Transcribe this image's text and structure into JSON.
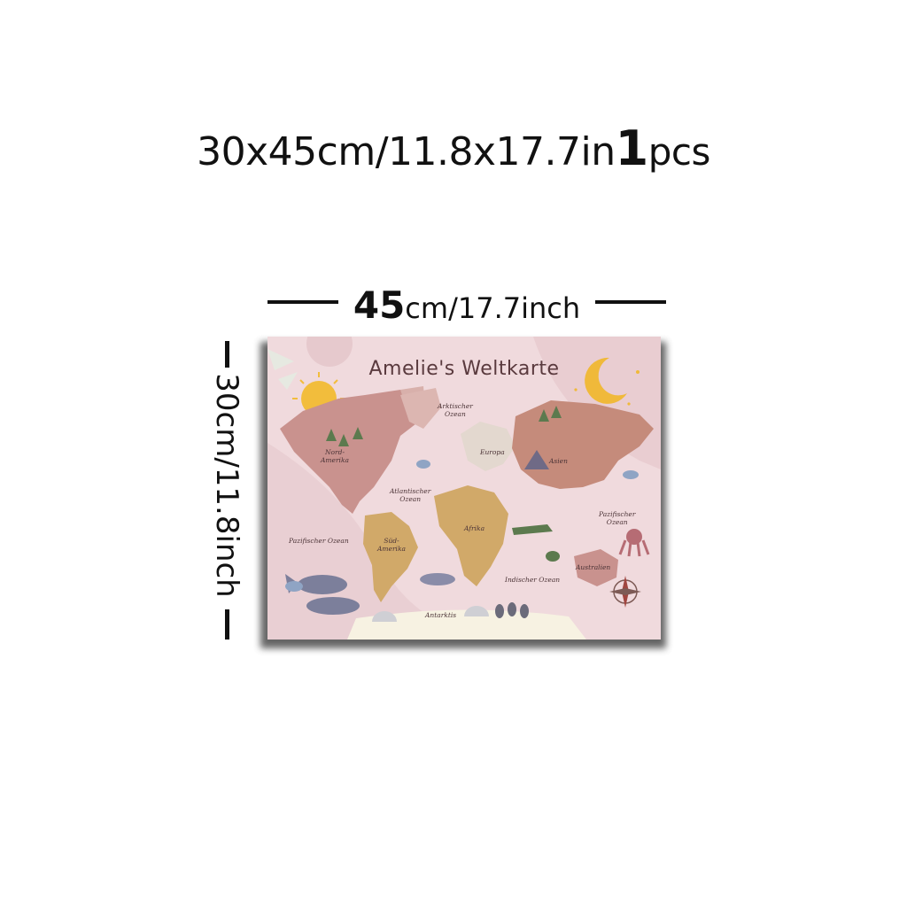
{
  "headline": {
    "size_text": "30x45cm/11.8x17.7in",
    "quantity": "1",
    "unit": "pcs"
  },
  "width_dimension": {
    "value": "45",
    "unit_text": "cm/17.7inch"
  },
  "height_dimension": {
    "text": "30cm/11.8inch"
  },
  "poster": {
    "title": "Amelie's Weltkarte",
    "labels": {
      "north_america": "Nord-\nAmerika",
      "arctic_ocean": "Arktischer\nOzean",
      "europe": "Europa",
      "asia": "Asien",
      "atlantic_ocean": "Atlantischer\nOzean",
      "pacific_ocean_left": "Pazifischer Ozean",
      "pacific_ocean_right": "Pazifischer\nOzean",
      "south_america": "Süd-\nAmerika",
      "africa": "Afrika",
      "indian_ocean": "Indischer Ozean",
      "australia": "Australien",
      "antarctica": "Antarktis"
    },
    "colors": {
      "background": "#f0dadd",
      "land_rose": "#c9928e",
      "land_brown": "#b98677",
      "land_ochre": "#d1a969",
      "sun": "#f2bd3c",
      "moon": "#f0b93a",
      "whale": "#7c7f9b",
      "ice": "#f7f2e2"
    }
  }
}
